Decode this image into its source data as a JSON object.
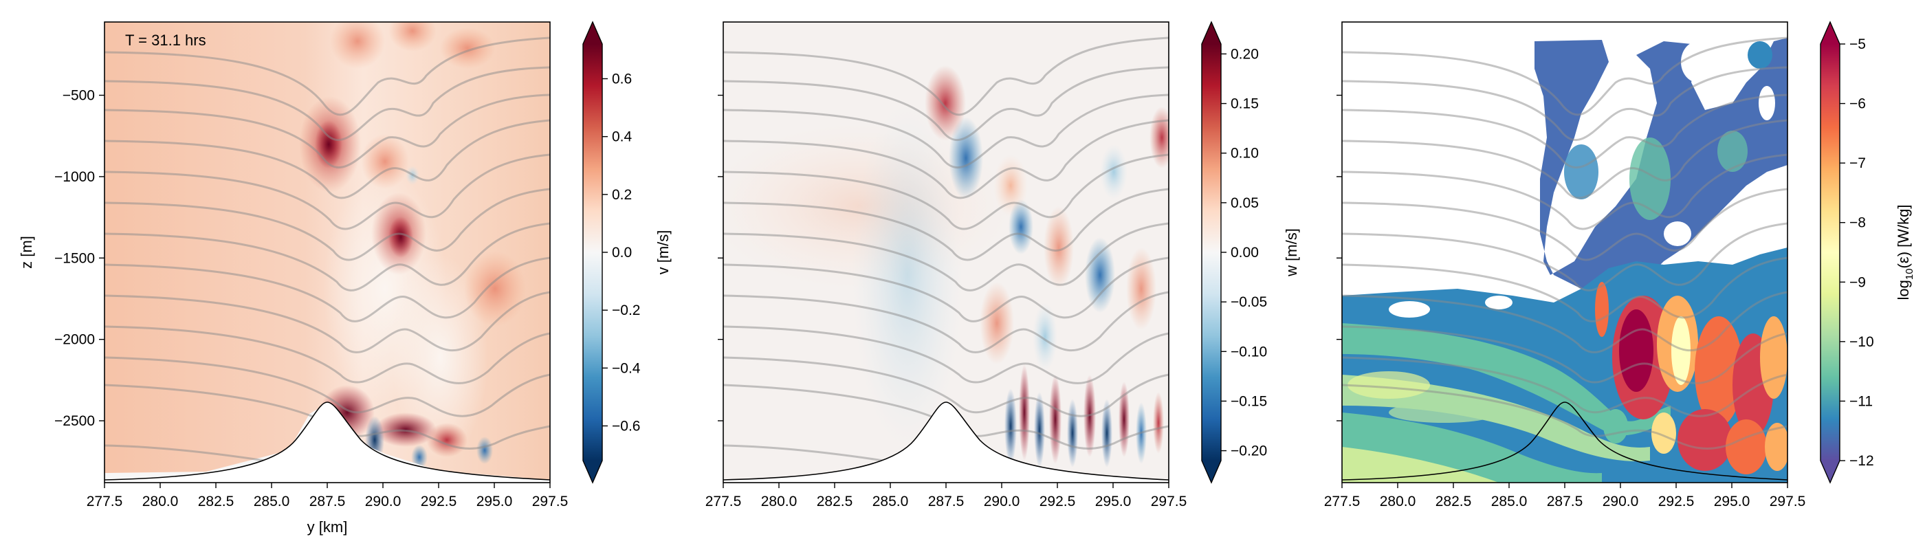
{
  "chart_data": [
    {
      "type": "heatmap",
      "field": "v",
      "annotation": "T = 31.1 hrs",
      "xlabel": "y [km]",
      "ylabel": "z [m]",
      "xlim": [
        277.5,
        297.5
      ],
      "ylim": [
        -2880,
        -50
      ],
      "x_ticks": [
        "277.5",
        "280.0",
        "282.5",
        "285.0",
        "287.5",
        "290.0",
        "292.5",
        "295.0",
        "297.5"
      ],
      "y_ticks": [
        "−500",
        "−1000",
        "−1500",
        "−2000",
        "−2500"
      ],
      "y_tick_values": [
        -500,
        -1000,
        -1500,
        -2000,
        -2500
      ],
      "colormap": "RdBu_r",
      "colorbar": {
        "label": "v [m/s]",
        "range": [
          -0.72,
          0.72
        ],
        "ticks": [
          "0.6",
          "0.4",
          "0.2",
          "0.0",
          "−0.2",
          "−0.4",
          "−0.6"
        ],
        "tick_values": [
          0.6,
          0.4,
          0.2,
          0.0,
          -0.2,
          -0.4,
          -0.6
        ],
        "extend": "both"
      },
      "topography_peak": {
        "y_km": 287.5,
        "z_m": -2400
      },
      "features": [
        {
          "y_km": 288.3,
          "z_m": -800,
          "value": 0.55
        },
        {
          "y_km": 290.8,
          "z_m": -1300,
          "value": 0.55
        },
        {
          "y_km": 289.5,
          "z_m": -2500,
          "value": 0.7
        }
      ]
    },
    {
      "type": "heatmap",
      "field": "w",
      "xlim": [
        277.5,
        297.5
      ],
      "ylim": [
        -2880,
        -50
      ],
      "x_ticks": [
        "277.5",
        "280.0",
        "282.5",
        "285.0",
        "287.5",
        "290.0",
        "292.5",
        "295.0",
        "297.5"
      ],
      "colormap": "RdBu_r",
      "colorbar": {
        "label": "w [m/s]",
        "range": [
          -0.21,
          0.21
        ],
        "ticks": [
          "0.20",
          "0.15",
          "0.10",
          "0.05",
          "0.00",
          "−0.05",
          "−0.10",
          "−0.15",
          "−0.20"
        ],
        "tick_values": [
          0.2,
          0.15,
          0.1,
          0.05,
          0.0,
          -0.05,
          -0.1,
          -0.15,
          -0.2
        ],
        "extend": "both"
      },
      "topography_peak": {
        "y_km": 287.5,
        "z_m": -2400
      }
    },
    {
      "type": "heatmap",
      "field": "log10(epsilon)",
      "xlim": [
        277.5,
        297.5
      ],
      "ylim": [
        -2880,
        -50
      ],
      "x_ticks": [
        "277.5",
        "280.0",
        "282.5",
        "285.0",
        "287.5",
        "290.0",
        "292.5",
        "295.0",
        "297.5"
      ],
      "colormap": "Spectral_r",
      "colorbar": {
        "label_prefix": "log",
        "label_sub": "10",
        "label_suffix": "(ε) [W/kg]",
        "range": [
          -12,
          -5
        ],
        "ticks": [
          "−5",
          "−6",
          "−7",
          "−8",
          "−9",
          "−10",
          "−11",
          "−12"
        ],
        "tick_values": [
          -5,
          -6,
          -7,
          -8,
          -9,
          -10,
          -11,
          -12
        ],
        "extend": "both"
      },
      "topography_peak": {
        "y_km": 287.5,
        "z_m": -2400
      }
    }
  ]
}
